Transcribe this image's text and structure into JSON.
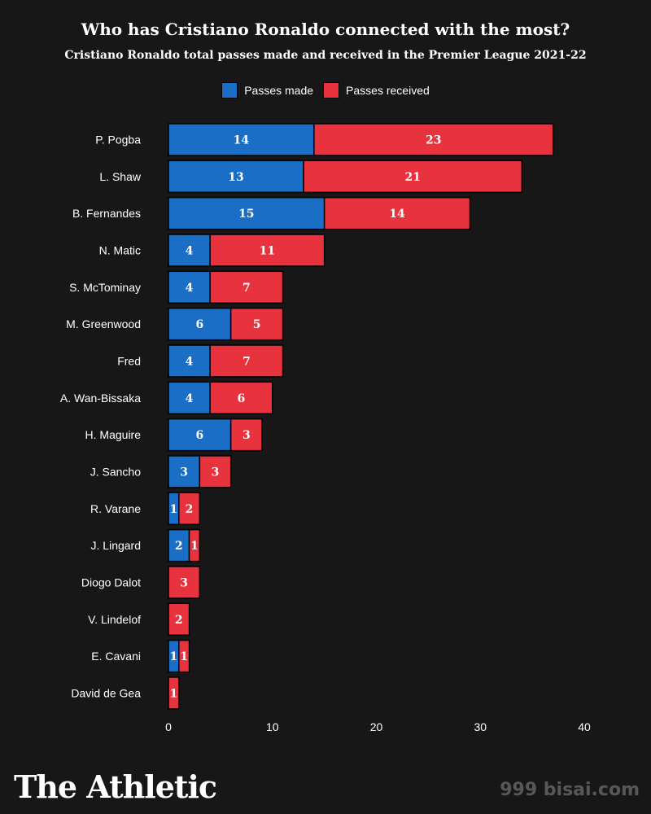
{
  "colors": {
    "made": "#1a6ec6",
    "received": "#e8333f",
    "background": "#171717"
  },
  "brand": "The Athletic",
  "watermark": "999 bisai.com",
  "chart_data": {
    "type": "bar",
    "orientation": "horizontal",
    "stacked": true,
    "title": "Who has Cristiano Ronaldo connected with the most?",
    "subtitle": "Cristiano Ronaldo total passes made and received in the Premier League 2021-22",
    "legend": {
      "placement": "top-center",
      "entries": [
        "Passes made",
        "Passes received"
      ]
    },
    "categories": [
      "P. Pogba",
      "L. Shaw",
      "B. Fernandes",
      "N. Matic",
      "S. McTominay",
      "M. Greenwood",
      "Fred",
      "A. Wan-Bissaka",
      "H. Maguire",
      "J. Sancho",
      "R. Varane",
      "J. Lingard",
      "Diogo Dalot",
      "V. Lindelof",
      "E. Cavani",
      "David de Gea"
    ],
    "series": [
      {
        "name": "Passes made",
        "values": [
          14,
          13,
          15,
          4,
          4,
          6,
          4,
          4,
          6,
          3,
          1,
          2,
          0,
          0,
          1,
          0
        ]
      },
      {
        "name": "Passes received",
        "values": [
          23,
          21,
          14,
          11,
          7,
          5,
          7,
          6,
          3,
          3,
          2,
          1,
          3,
          2,
          1,
          1
        ]
      }
    ],
    "xlim": [
      0,
      40
    ],
    "xticks": [
      0,
      10,
      20,
      30,
      40
    ],
    "grid": false
  }
}
